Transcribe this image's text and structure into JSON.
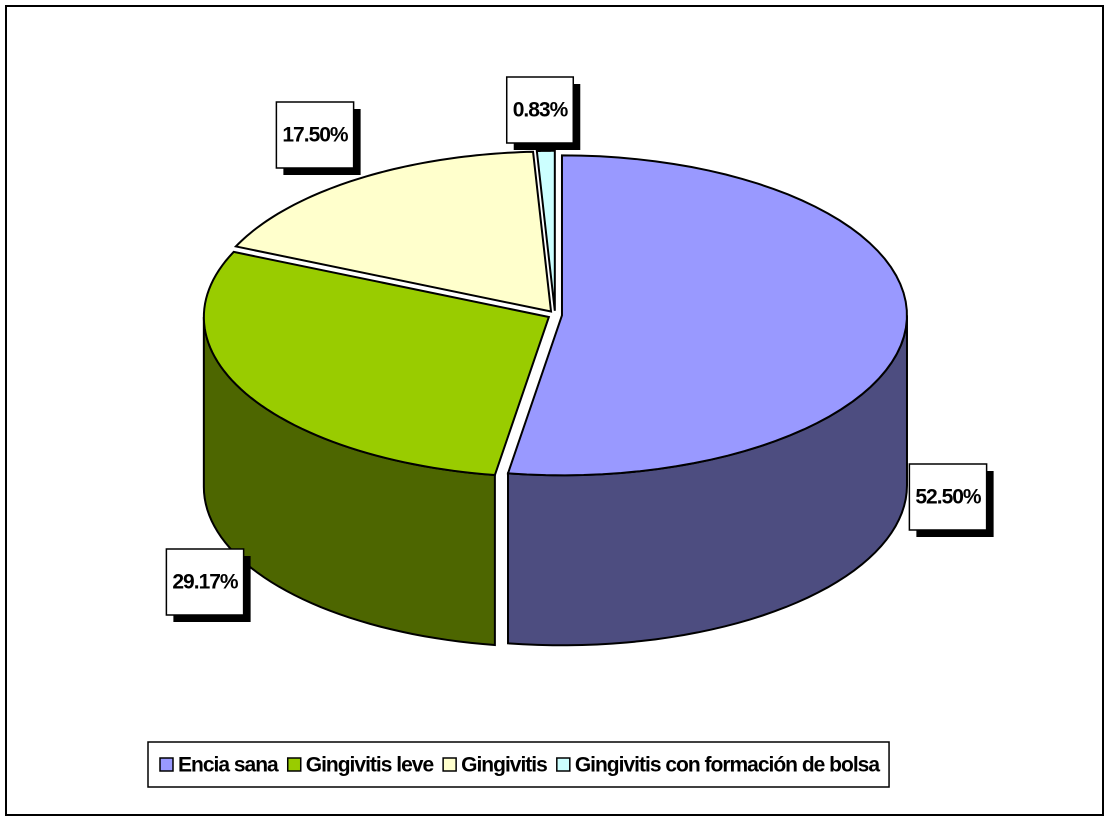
{
  "chart_data": {
    "type": "pie3d",
    "categories": [
      "Encia sana",
      "Gingivitis leve",
      "Gingivitis",
      "Gingivitis con formación de bolsa"
    ],
    "values": [
      52.5,
      29.17,
      17.5,
      0.83
    ],
    "value_labels": [
      "52.50%",
      "29.17%",
      "17.50%",
      "0.83%"
    ],
    "colors": [
      "#9999ff",
      "#99cc00",
      "#ffffcc",
      "#ccffff"
    ],
    "legend": "bottom"
  }
}
